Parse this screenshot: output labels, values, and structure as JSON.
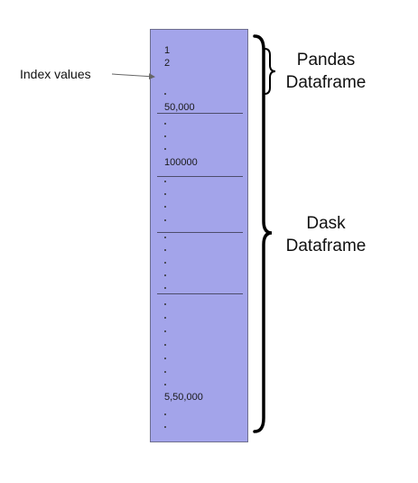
{
  "callout": {
    "label": "Index values"
  },
  "index_labels": {
    "first": "1",
    "second": "2",
    "p1": "50,000",
    "p2": "100000",
    "last": "5,50,000"
  },
  "braces": {
    "pandas": {
      "line1": "Pandas",
      "line2": "Dataframe"
    },
    "dask": {
      "line1": "Dask",
      "line2": "Dataframe"
    }
  },
  "colors": {
    "column_fill": "#a3a4ea",
    "partition_line": "#4d4d6b",
    "text": "#111111"
  }
}
